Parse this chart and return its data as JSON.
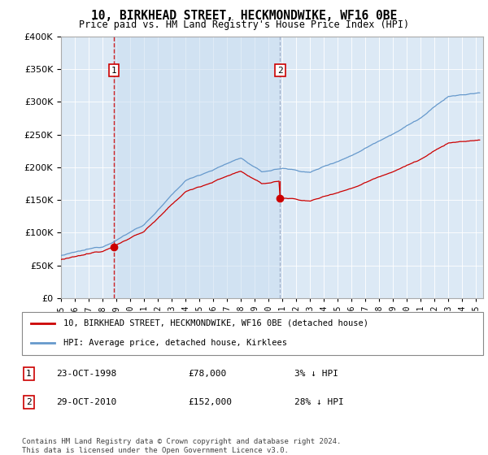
{
  "title": "10, BIRKHEAD STREET, HECKMONDWIKE, WF16 0BE",
  "subtitle": "Price paid vs. HM Land Registry's House Price Index (HPI)",
  "legend_line1": "10, BIRKHEAD STREET, HECKMONDWIKE, WF16 0BE (detached house)",
  "legend_line2": "HPI: Average price, detached house, Kirklees",
  "footer": "Contains HM Land Registry data © Crown copyright and database right 2024.\nThis data is licensed under the Open Government Licence v3.0.",
  "table_rows": [
    {
      "num": "1",
      "date": "23-OCT-1998",
      "price": "£78,000",
      "hpi": "3% ↓ HPI"
    },
    {
      "num": "2",
      "date": "29-OCT-2010",
      "price": "£152,000",
      "hpi": "28% ↓ HPI"
    }
  ],
  "sale1_year": 1998.83,
  "sale1_price": 78000,
  "sale2_year": 2010.83,
  "sale2_price": 152000,
  "hpi_color": "#6699cc",
  "price_color": "#cc0000",
  "dashed1_color": "#cc0000",
  "dashed2_color": "#8899bb",
  "shade_color": "#dce9f5",
  "plot_bg": "#dce9f5",
  "ylim": [
    0,
    400000
  ],
  "yticks": [
    0,
    50000,
    100000,
    150000,
    200000,
    250000,
    300000,
    350000,
    400000
  ],
  "xmin": 1995.0,
  "xmax": 2025.5
}
